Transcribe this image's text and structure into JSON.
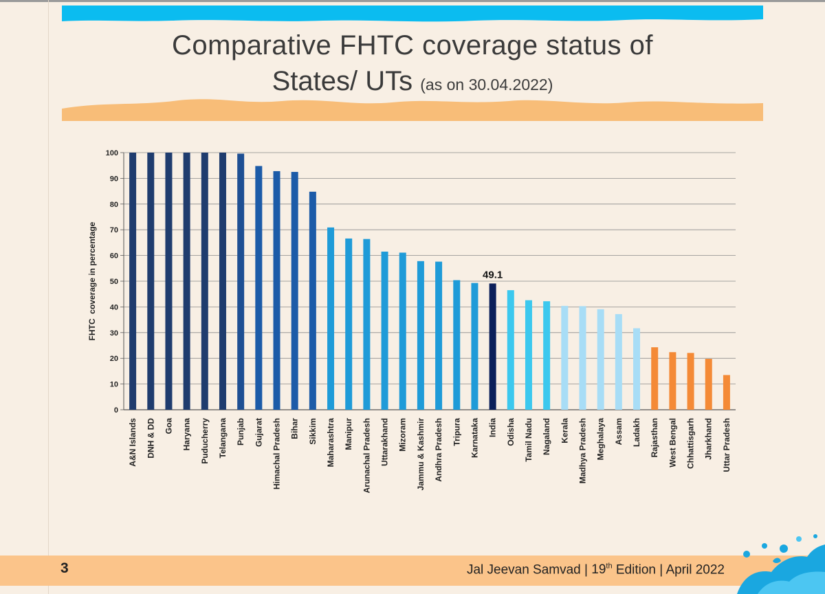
{
  "header": {
    "title_line1": "Comparative FHTC coverage status of",
    "title_line2": "States/ UTs",
    "title_date": "(as on 30.04.2022)"
  },
  "footer": {
    "page_number": "3",
    "publication": "Jal Jeevan Samvad",
    "separator": "|",
    "edition_number": "19",
    "edition_suffix": "th",
    "edition_word": "Edition",
    "month_year": "April 2022"
  },
  "colors": {
    "banner_blue": "#0bbcf0",
    "banner_sand": "#f8bd78",
    "footer_bar": "#fbc48a"
  },
  "chart_data": {
    "type": "bar",
    "title": "Comparative FHTC coverage status of States/ UTs (as on 30.04.2022)",
    "xlabel": "",
    "ylabel": "FHTC  coverage in percentage",
    "ylim": [
      0,
      100
    ],
    "yticks": [
      0,
      10,
      20,
      30,
      40,
      50,
      60,
      70,
      80,
      90,
      100
    ],
    "grid": true,
    "categories": [
      "A&N Islands",
      "DNH & DD",
      "Goa",
      "Haryana",
      "Puducherry",
      "Telangana",
      "Punjab",
      "Gujarat",
      "Himachal Pradesh",
      "Bihar",
      "Sikkim",
      "Maharashtra",
      "Manipur",
      "Arunachal Pradesh",
      "Uttarakhand",
      "Mizoram",
      "Jammu & Kashmir",
      "Andhra Pradesh",
      "Tripura",
      "Karnataka",
      "India",
      "Odisha",
      "Tamil Nadu",
      "Nagaland",
      "Kerala",
      "Madhya Pradesh",
      "Meghalaya",
      "Assam",
      "Ladakh",
      "Rajasthan",
      "West Bengal",
      "Chhattisgarh",
      "Jharkhand",
      "Uttar Pradesh"
    ],
    "values": [
      100,
      100,
      100,
      100,
      100,
      100,
      99.6,
      94.8,
      92.8,
      92.5,
      84.8,
      70.9,
      66.6,
      66.4,
      61.5,
      61.1,
      57.8,
      57.6,
      50.4,
      49.3,
      49.1,
      46.5,
      42.6,
      42.2,
      40.4,
      40.3,
      39.1,
      37.2,
      31.7,
      24.3,
      22.4,
      22.1,
      19.8,
      13.5
    ],
    "bar_colors": [
      "#1f3c6e",
      "#1f3c6e",
      "#1f3c6e",
      "#1f3c6e",
      "#1f3c6e",
      "#1f3c6e",
      "#1e4f93",
      "#1c5ba8",
      "#1c5ba8",
      "#1c5ba8",
      "#1c5ba8",
      "#1f9bd8",
      "#1f9bd8",
      "#1f9bd8",
      "#1f9bd8",
      "#1f9bd8",
      "#1f9bd8",
      "#1f9bd8",
      "#1f9bd8",
      "#1f9bd8",
      "#0b1f5a",
      "#3cc8ee",
      "#3cc8ee",
      "#3cc8ee",
      "#a8ddf6",
      "#a8ddf6",
      "#a8ddf6",
      "#a8ddf6",
      "#a8ddf6",
      "#f48a36",
      "#f48a36",
      "#f48a36",
      "#f48a36",
      "#f48a36"
    ],
    "annotations": [
      {
        "category": "India",
        "text": "49.1"
      }
    ]
  }
}
